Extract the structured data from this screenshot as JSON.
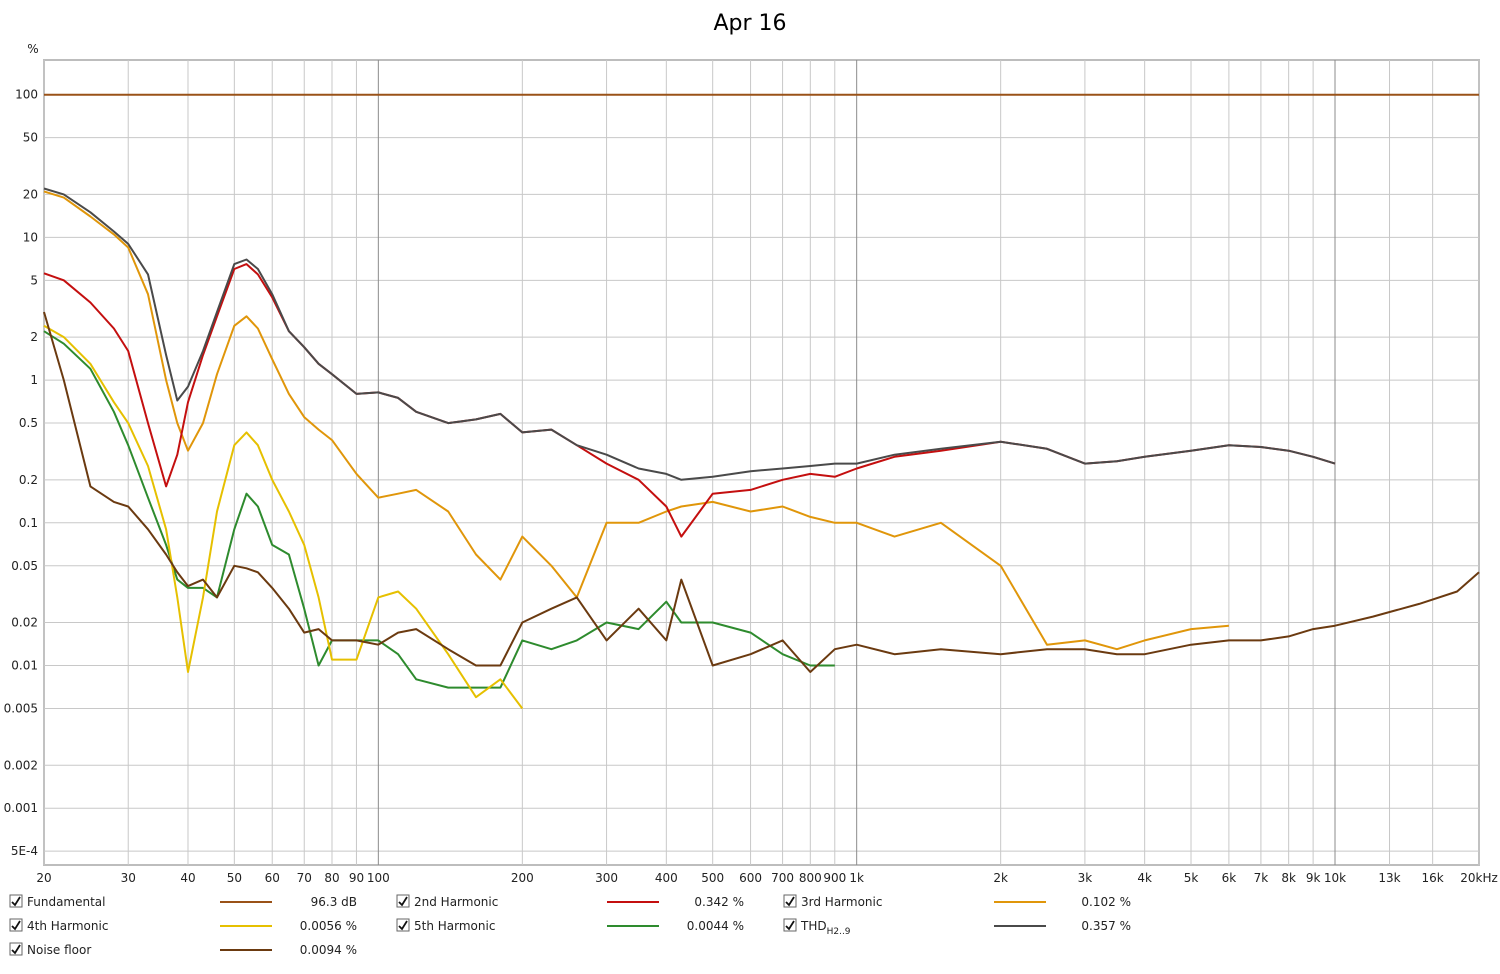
{
  "chart_data": {
    "type": "line",
    "title": "Apr 16",
    "y_label": "%",
    "log_x": true,
    "log_y": true,
    "grid": true,
    "xlim": [
      20,
      20000
    ],
    "ylim": [
      0.0004,
      175
    ],
    "xticks": [
      20,
      30,
      40,
      50,
      60,
      70,
      80,
      90,
      100,
      200,
      300,
      400,
      500,
      600,
      700,
      800,
      900,
      {
        "value": 1000,
        "label": "1k"
      },
      {
        "value": 2000,
        "label": "2k"
      },
      {
        "value": 3000,
        "label": "3k"
      },
      {
        "value": 4000,
        "label": "4k"
      },
      {
        "value": 5000,
        "label": "5k"
      },
      {
        "value": 6000,
        "label": "6k"
      },
      {
        "value": 7000,
        "label": "7k"
      },
      {
        "value": 8000,
        "label": "8k"
      },
      {
        "value": 9000,
        "label": "9k"
      },
      {
        "value": 10000,
        "label": "10k"
      },
      {
        "value": 13000,
        "label": "13k"
      },
      {
        "value": 16000,
        "label": "16k"
      },
      {
        "value": 20000,
        "label": "20kHz"
      }
    ],
    "yticks": [
      100,
      50,
      20,
      10,
      5,
      2,
      1,
      0.5,
      0.2,
      0.1,
      0.05,
      0.02,
      0.01,
      0.005,
      0.002,
      0.001,
      {
        "value": 0.0005,
        "label": "5E-4"
      }
    ],
    "x": [
      20,
      22,
      25,
      28,
      30,
      33,
      36,
      38,
      40,
      43,
      46,
      50,
      53,
      56,
      60,
      65,
      70,
      75,
      80,
      90,
      100,
      110,
      120,
      140,
      160,
      180,
      200,
      230,
      260,
      300,
      350,
      400,
      430,
      500,
      600,
      700,
      800,
      900,
      1000,
      1200,
      1500,
      2000,
      2500,
      3000,
      3500,
      4000,
      5000,
      6000,
      7000,
      8000,
      9000,
      10000,
      12000,
      15000,
      18000,
      20000
    ],
    "series": [
      {
        "name": "Fundamental",
        "readout": "96.3 dB",
        "color": "#9a5218",
        "values": [
          100,
          100,
          100,
          100,
          100,
          100,
          100,
          100,
          100,
          100,
          100,
          100,
          100,
          100,
          100,
          100,
          100,
          100,
          100,
          100,
          100,
          100,
          100,
          100,
          100,
          100,
          100,
          100,
          100,
          100,
          100,
          100,
          100,
          100,
          100,
          100,
          100,
          100,
          100,
          100,
          100,
          100,
          100,
          100,
          100,
          100,
          100,
          100,
          100,
          100,
          100,
          100,
          100,
          100,
          100,
          100
        ]
      },
      {
        "name": "2nd Harmonic",
        "readout": "0.342 %",
        "color": "#c40f0f",
        "values": [
          5.6,
          5,
          3.5,
          2.3,
          1.6,
          0.5,
          0.18,
          0.3,
          0.7,
          1.5,
          2.8,
          6,
          6.5,
          5.5,
          3.8,
          2.2,
          1.7,
          1.3,
          1.1,
          0.8,
          0.82,
          0.75,
          0.6,
          0.5,
          0.53,
          0.58,
          0.43,
          0.45,
          0.35,
          0.26,
          0.2,
          0.13,
          0.08,
          0.16,
          0.17,
          0.2,
          0.22,
          0.21,
          0.24,
          0.29,
          0.32,
          0.37,
          0.33,
          0.26,
          0.27,
          0.29,
          0.32,
          0.35,
          0.34,
          0.32,
          0.29,
          0.26,
          null,
          null,
          null,
          null
        ]
      },
      {
        "name": "3rd Harmonic",
        "readout": "0.102 %",
        "color": "#e0960a",
        "values": [
          21,
          19,
          14,
          10.5,
          8.5,
          4,
          1,
          0.5,
          0.32,
          0.5,
          1.1,
          2.4,
          2.8,
          2.3,
          1.4,
          0.8,
          0.55,
          0.45,
          0.38,
          0.22,
          0.15,
          0.16,
          0.17,
          0.12,
          0.06,
          0.04,
          0.08,
          0.05,
          0.03,
          0.1,
          0.1,
          0.12,
          0.13,
          0.14,
          0.12,
          0.13,
          0.11,
          0.1,
          0.1,
          0.08,
          0.1,
          0.05,
          0.014,
          0.015,
          0.013,
          0.015,
          0.018,
          0.019,
          null,
          null,
          null,
          null,
          null,
          null,
          null,
          null
        ]
      },
      {
        "name": "4th Harmonic",
        "readout": "0.0056 %",
        "color": "#e6c000",
        "values": [
          2.4,
          2,
          1.3,
          0.7,
          0.5,
          0.25,
          0.09,
          0.03,
          0.009,
          0.03,
          0.12,
          0.35,
          0.43,
          0.35,
          0.2,
          0.12,
          0.07,
          0.03,
          0.011,
          0.011,
          0.03,
          0.033,
          0.025,
          0.012,
          0.006,
          0.008,
          0.005,
          null,
          null,
          null,
          null,
          null,
          null,
          null,
          null,
          null,
          null,
          null,
          null,
          null,
          null,
          null,
          null,
          null,
          null,
          null,
          null,
          null,
          null,
          null,
          null,
          null,
          null,
          null,
          null,
          null
        ]
      },
      {
        "name": "5th Harmonic",
        "readout": "0.0044 %",
        "color": "#2e8b2e",
        "values": [
          2.2,
          1.8,
          1.2,
          0.6,
          0.35,
          0.15,
          0.07,
          0.04,
          0.035,
          0.035,
          0.03,
          0.09,
          0.16,
          0.13,
          0.07,
          0.06,
          0.025,
          0.01,
          0.015,
          0.015,
          0.015,
          0.012,
          0.008,
          0.007,
          0.007,
          0.007,
          0.015,
          0.013,
          0.015,
          0.02,
          0.018,
          0.028,
          0.02,
          0.02,
          0.017,
          0.012,
          0.01,
          0.01,
          null,
          null,
          null,
          null,
          null,
          null,
          null,
          null,
          null,
          null,
          null,
          null,
          null,
          null,
          null,
          null,
          null,
          null
        ]
      },
      {
        "name": "THD",
        "name_sub": "H2..9",
        "readout": "0.357 %",
        "color": "#4a4a4a",
        "values": [
          22,
          20,
          15,
          11,
          9,
          5.5,
          1.5,
          0.72,
          0.9,
          1.6,
          3,
          6.5,
          7,
          6,
          4,
          2.2,
          1.7,
          1.3,
          1.1,
          0.8,
          0.82,
          0.75,
          0.6,
          0.5,
          0.53,
          0.58,
          0.43,
          0.45,
          0.35,
          0.3,
          0.24,
          0.22,
          0.2,
          0.21,
          0.23,
          0.24,
          0.25,
          0.26,
          0.26,
          0.3,
          0.33,
          0.37,
          0.33,
          0.26,
          0.27,
          0.29,
          0.32,
          0.35,
          0.34,
          0.32,
          0.29,
          0.26,
          null,
          null,
          null,
          null
        ]
      },
      {
        "name": "Noise floor",
        "readout": "0.0094 %",
        "color": "#6b3a10",
        "values": [
          3,
          1,
          0.18,
          0.14,
          0.13,
          0.09,
          0.06,
          0.045,
          0.036,
          0.04,
          0.03,
          0.05,
          0.048,
          0.045,
          0.035,
          0.025,
          0.017,
          0.018,
          0.015,
          0.015,
          0.014,
          0.017,
          0.018,
          0.013,
          0.01,
          0.01,
          0.02,
          0.025,
          0.03,
          0.015,
          0.025,
          0.015,
          0.04,
          0.01,
          0.012,
          0.015,
          0.009,
          0.013,
          0.014,
          0.012,
          0.013,
          0.012,
          0.013,
          0.013,
          0.012,
          0.012,
          0.014,
          0.015,
          0.015,
          0.016,
          0.018,
          0.019,
          0.022,
          0.027,
          0.033,
          0.045
        ]
      }
    ]
  }
}
